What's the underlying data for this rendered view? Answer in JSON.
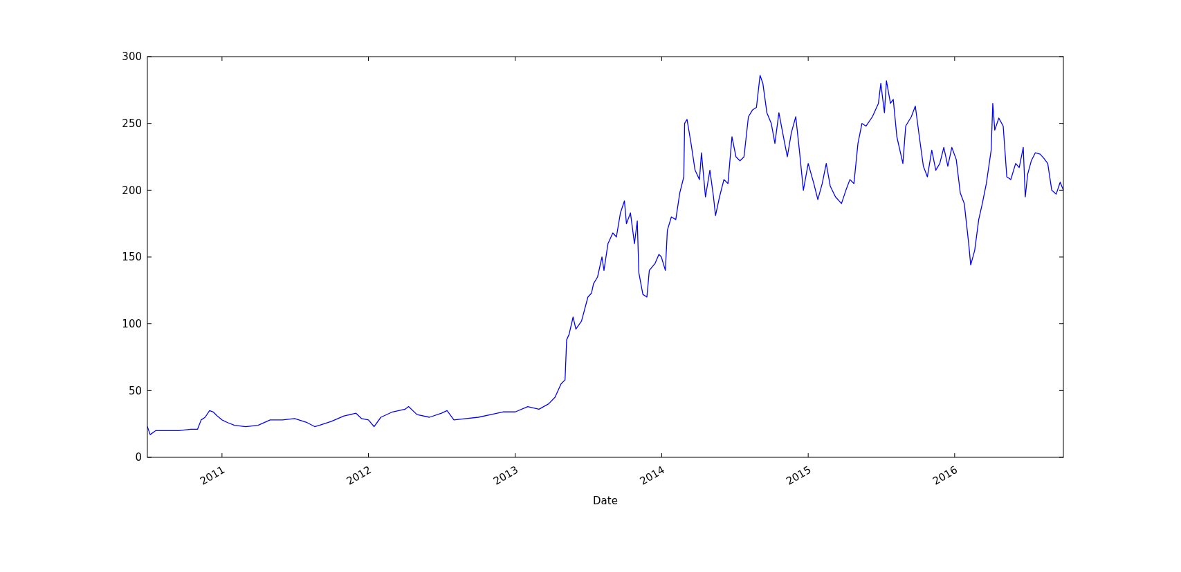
{
  "chart_data": {
    "type": "line",
    "xlabel": "Date",
    "xlim": [
      "2010-06-29",
      "2016-09-28"
    ],
    "ylim": [
      0,
      300
    ],
    "yticks": [
      0,
      50,
      100,
      150,
      200,
      250,
      300
    ],
    "xticks": [
      {
        "value": "2011-01-01",
        "label": "2011"
      },
      {
        "value": "2012-01-01",
        "label": "2012"
      },
      {
        "value": "2013-01-01",
        "label": "2013"
      },
      {
        "value": "2014-01-01",
        "label": "2014"
      },
      {
        "value": "2015-01-01",
        "label": "2015"
      },
      {
        "value": "2016-01-01",
        "label": "2016"
      }
    ],
    "x": [
      "2010-06-29",
      "2010-07-06",
      "2010-07-20",
      "2010-08-15",
      "2010-09-15",
      "2010-10-15",
      "2010-11-01",
      "2010-11-10",
      "2010-11-20",
      "2010-12-01",
      "2010-12-10",
      "2010-12-20",
      "2011-01-01",
      "2011-01-15",
      "2011-02-01",
      "2011-03-01",
      "2011-04-01",
      "2011-05-01",
      "2011-06-01",
      "2011-07-01",
      "2011-08-01",
      "2011-08-20",
      "2011-09-01",
      "2011-10-01",
      "2011-11-01",
      "2011-12-01",
      "2011-12-15",
      "2012-01-01",
      "2012-01-15",
      "2012-02-01",
      "2012-03-01",
      "2012-04-01",
      "2012-04-10",
      "2012-05-01",
      "2012-06-01",
      "2012-07-01",
      "2012-07-15",
      "2012-08-01",
      "2012-09-01",
      "2012-10-01",
      "2012-11-01",
      "2012-12-01",
      "2013-01-01",
      "2013-02-01",
      "2013-03-01",
      "2013-03-25",
      "2013-04-10",
      "2013-04-25",
      "2013-05-05",
      "2013-05-09",
      "2013-05-15",
      "2013-05-25",
      "2013-06-01",
      "2013-06-15",
      "2013-07-01",
      "2013-07-10",
      "2013-07-15",
      "2013-07-25",
      "2013-08-05",
      "2013-08-10",
      "2013-08-20",
      "2013-09-01",
      "2013-09-10",
      "2013-09-20",
      "2013-09-30",
      "2013-10-05",
      "2013-10-15",
      "2013-10-25",
      "2013-11-01",
      "2013-11-05",
      "2013-11-15",
      "2013-11-25",
      "2013-12-01",
      "2013-12-15",
      "2013-12-25",
      "2013-12-31",
      "2014-01-10",
      "2014-01-15",
      "2014-01-25",
      "2014-02-05",
      "2014-02-15",
      "2014-02-25",
      "2014-02-27",
      "2014-03-05",
      "2014-03-15",
      "2014-03-25",
      "2014-04-05",
      "2014-04-10",
      "2014-04-20",
      "2014-05-01",
      "2014-05-10",
      "2014-05-15",
      "2014-05-25",
      "2014-06-05",
      "2014-06-15",
      "2014-06-25",
      "2014-07-05",
      "2014-07-15",
      "2014-07-25",
      "2014-08-05",
      "2014-08-15",
      "2014-08-25",
      "2014-09-03",
      "2014-09-10",
      "2014-09-20",
      "2014-10-01",
      "2014-10-10",
      "2014-10-20",
      "2014-10-30",
      "2014-11-10",
      "2014-11-20",
      "2014-12-01",
      "2014-12-10",
      "2014-12-20",
      "2015-01-01",
      "2015-01-15",
      "2015-01-25",
      "2015-02-05",
      "2015-02-15",
      "2015-02-25",
      "2015-03-10",
      "2015-03-25",
      "2015-04-05",
      "2015-04-15",
      "2015-04-25",
      "2015-05-05",
      "2015-05-15",
      "2015-05-25",
      "2015-06-10",
      "2015-06-25",
      "2015-07-01",
      "2015-07-10",
      "2015-07-15",
      "2015-07-25",
      "2015-08-01",
      "2015-08-10",
      "2015-08-25",
      "2015-09-01",
      "2015-09-15",
      "2015-09-25",
      "2015-10-05",
      "2015-10-15",
      "2015-10-25",
      "2015-11-05",
      "2015-11-15",
      "2015-11-25",
      "2015-12-05",
      "2015-12-15",
      "2015-12-25",
      "2016-01-05",
      "2016-01-15",
      "2016-01-25",
      "2016-02-05",
      "2016-02-10",
      "2016-02-20",
      "2016-03-01",
      "2016-03-10",
      "2016-03-20",
      "2016-04-01",
      "2016-04-05",
      "2016-04-10",
      "2016-04-20",
      "2016-05-01",
      "2016-05-10",
      "2016-05-20",
      "2016-06-01",
      "2016-06-10",
      "2016-06-20",
      "2016-06-25",
      "2016-07-01",
      "2016-07-10",
      "2016-07-20",
      "2016-08-01",
      "2016-08-10",
      "2016-08-20",
      "2016-08-30",
      "2016-09-10",
      "2016-09-20",
      "2016-09-28"
    ],
    "series": [
      {
        "color": "#0000ff",
        "values": [
          23,
          17,
          20,
          20,
          20,
          21,
          21,
          28,
          30,
          35,
          34,
          31,
          28,
          26,
          24,
          23,
          24,
          28,
          28,
          29,
          26,
          23,
          24,
          27,
          31,
          33,
          29,
          28,
          23,
          30,
          34,
          36,
          38,
          32,
          30,
          33,
          35,
          28,
          29,
          30,
          32,
          34,
          34,
          38,
          36,
          40,
          45,
          55,
          58,
          88,
          92,
          105,
          96,
          102,
          120,
          123,
          130,
          135,
          150,
          140,
          160,
          168,
          165,
          183,
          192,
          175,
          183,
          160,
          177,
          138,
          122,
          120,
          140,
          145,
          152,
          150,
          140,
          170,
          180,
          178,
          198,
          210,
          250,
          253,
          235,
          215,
          208,
          228,
          195,
          215,
          195,
          181,
          195,
          208,
          205,
          240,
          225,
          222,
          225,
          255,
          260,
          262,
          286,
          280,
          258,
          250,
          235,
          258,
          242,
          225,
          243,
          255,
          230,
          200,
          220,
          205,
          193,
          205,
          220,
          203,
          195,
          190,
          200,
          208,
          205,
          235,
          250,
          248,
          255,
          265,
          280,
          258,
          282,
          265,
          268,
          240,
          220,
          248,
          255,
          263,
          240,
          218,
          210,
          230,
          215,
          220,
          232,
          218,
          232,
          223,
          198,
          190,
          160,
          144,
          155,
          178,
          190,
          205,
          230,
          265,
          245,
          254,
          248,
          210,
          208,
          220,
          217,
          232,
          195,
          212,
          222,
          228,
          227,
          224,
          220,
          200,
          197,
          206,
          200
        ]
      }
    ]
  }
}
